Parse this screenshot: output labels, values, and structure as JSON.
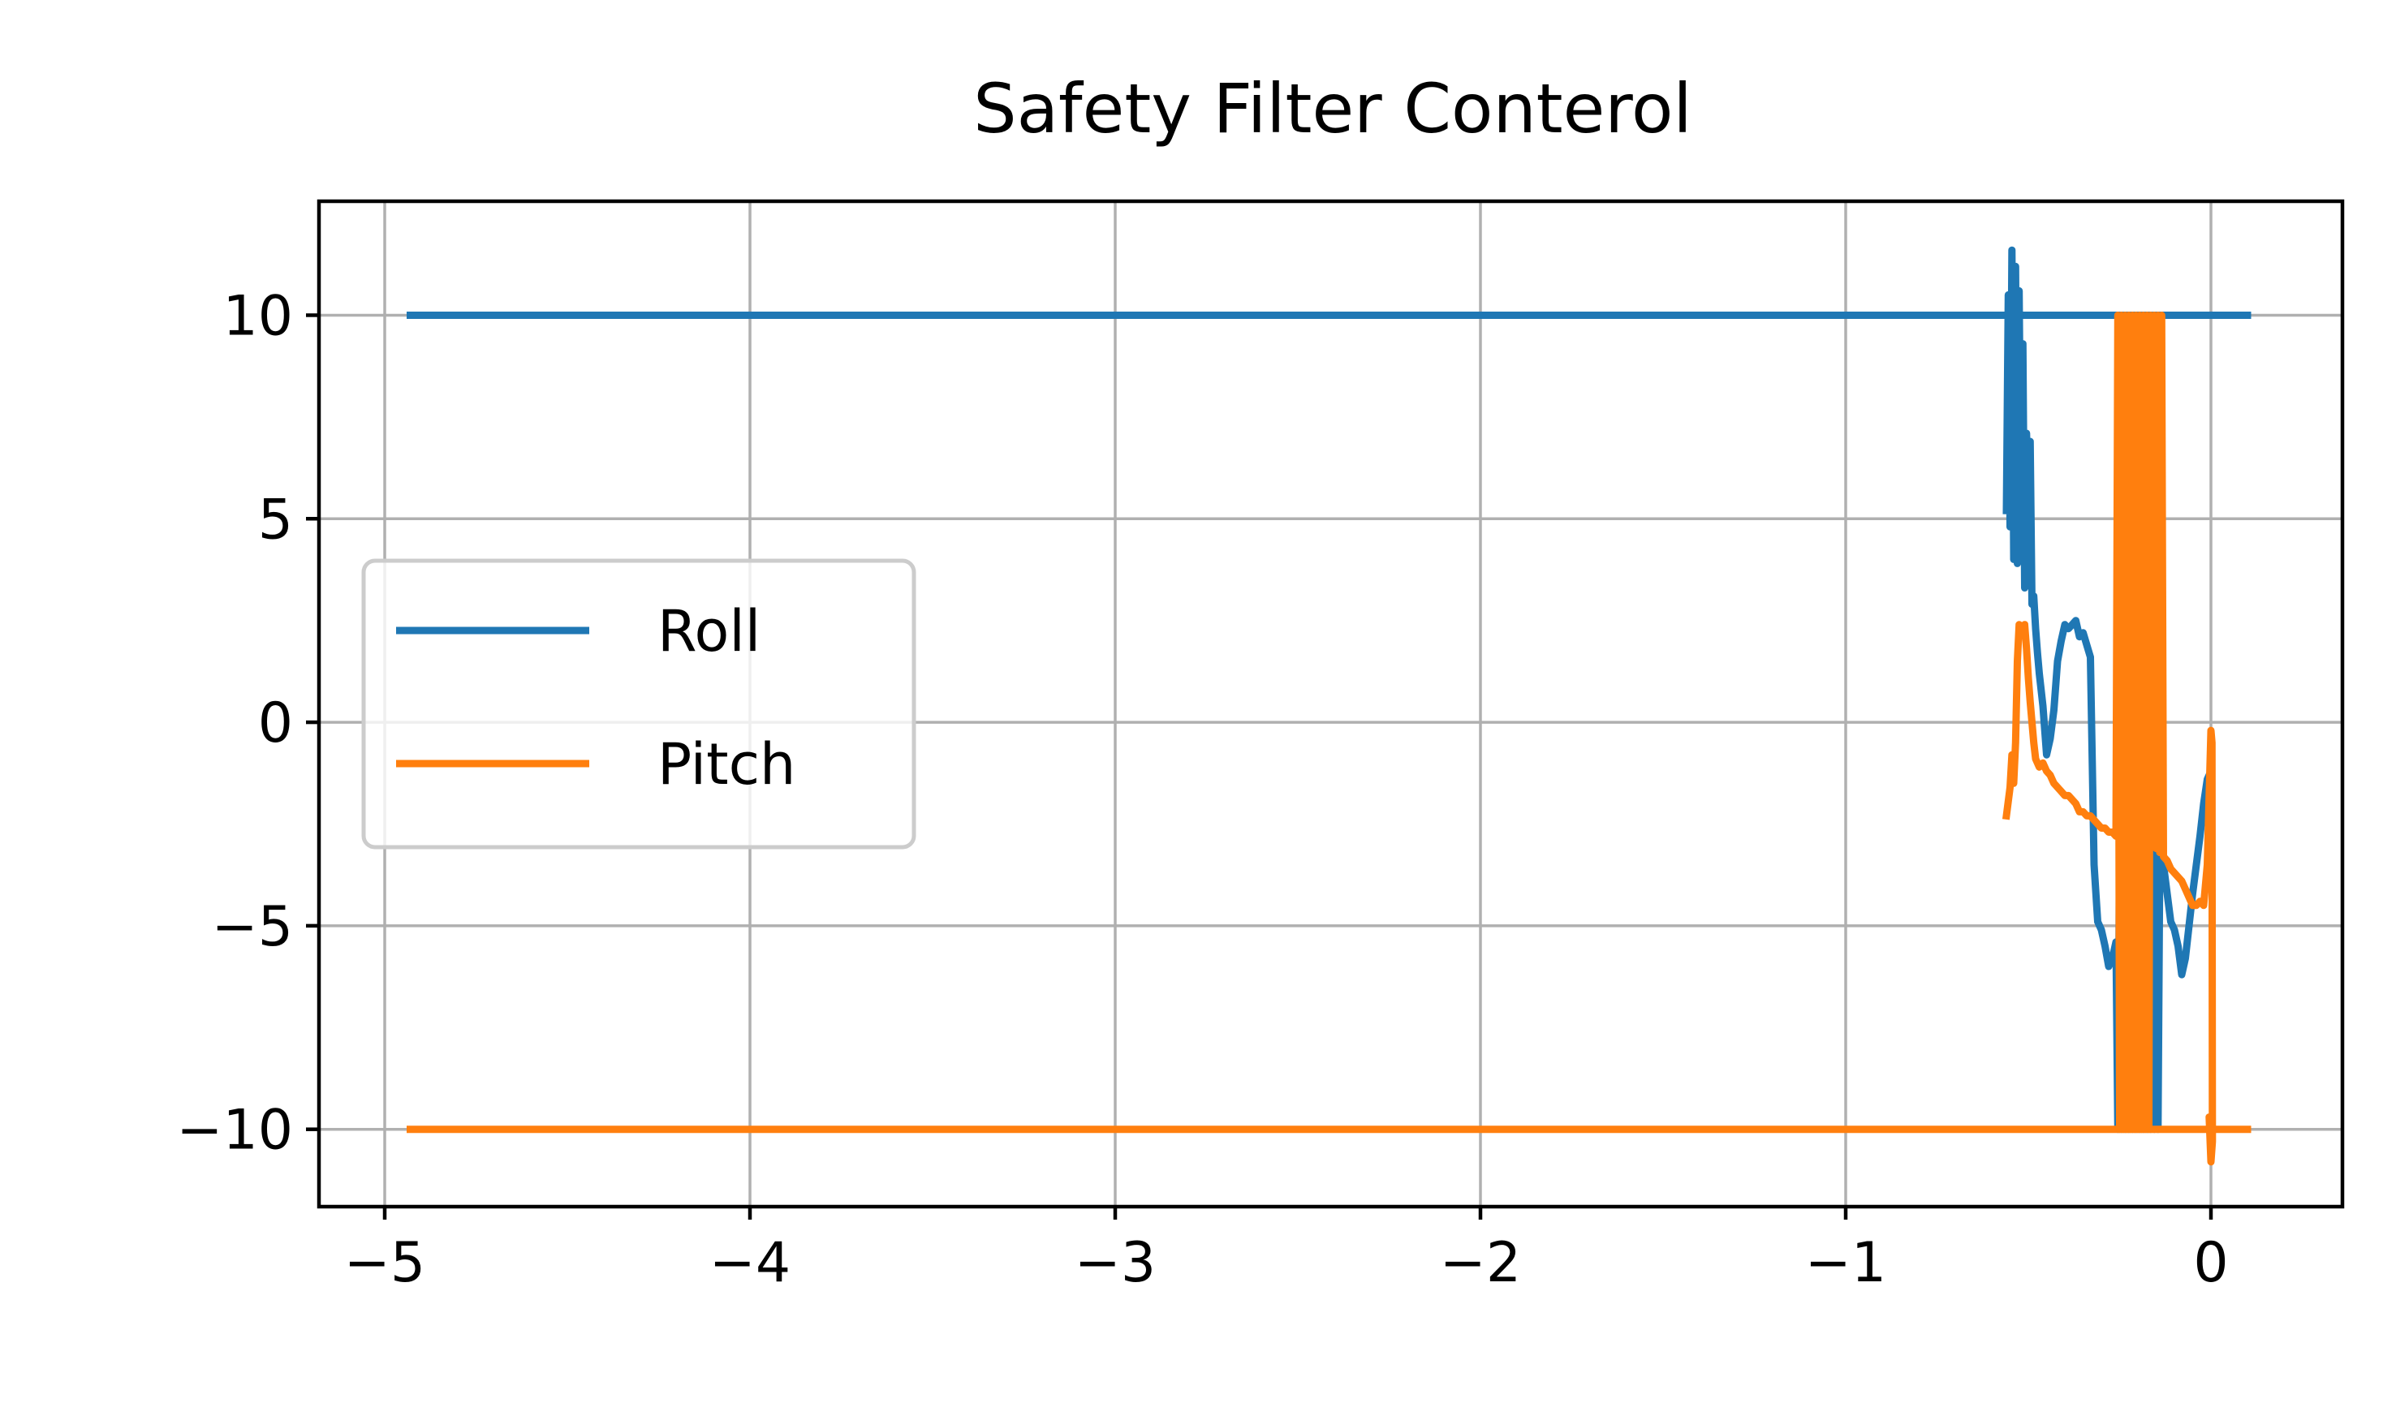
{
  "chart_data": {
    "type": "line",
    "title": "Safety Filter Conterol",
    "xlabel": "",
    "ylabel": "",
    "xlim": [
      -5.18,
      0.36
    ],
    "ylim": [
      -11.9,
      12.8
    ],
    "xticks": [
      -5,
      -4,
      -3,
      -2,
      -1,
      0
    ],
    "yticks": [
      -10,
      -5,
      0,
      5,
      10
    ],
    "xtick_labels": [
      "−5",
      "−4",
      "−3",
      "−2",
      "−1",
      "0"
    ],
    "ytick_labels": [
      "−10",
      "−5",
      "0",
      "5",
      "10"
    ],
    "grid": true,
    "legend": {
      "placement": "center-left",
      "entries": [
        "Roll",
        "Pitch"
      ]
    },
    "series": [
      {
        "name": "Roll",
        "color": "#1f77b4",
        "segments": [
          {
            "x": [
              -4.93,
              0.1
            ],
            "y": [
              10,
              10
            ]
          },
          {
            "x": [
              -0.56,
              -0.555,
              -0.55,
              -0.545,
              -0.54,
              -0.535,
              -0.53,
              -0.525,
              -0.52,
              -0.515,
              -0.51,
              -0.505,
              -0.5,
              -0.495,
              -0.49,
              -0.485,
              -0.48,
              -0.475,
              -0.47,
              -0.46,
              -0.45,
              -0.44,
              -0.43,
              -0.42,
              -0.41,
              -0.4,
              -0.39,
              -0.38,
              -0.37,
              -0.36,
              -0.35,
              -0.34,
              -0.33,
              -0.32,
              -0.31,
              -0.3,
              -0.29,
              -0.28,
              -0.27,
              -0.26,
              -0.255,
              -0.25,
              -0.245,
              -0.24,
              -0.235,
              -0.23,
              -0.225,
              -0.22,
              -0.215,
              -0.21,
              -0.205,
              -0.2,
              -0.195,
              -0.19,
              -0.185,
              -0.18,
              -0.175,
              -0.17,
              -0.165,
              -0.16,
              -0.155,
              -0.15,
              -0.145,
              -0.14,
              -0.135,
              -0.13,
              -0.12,
              -0.11,
              -0.1,
              -0.09,
              -0.08,
              -0.07,
              -0.06,
              -0.05,
              -0.04,
              -0.03,
              -0.02,
              -0.01,
              0.0,
              -0.005,
              0.0
            ],
            "y": [
              5.2,
              10.5,
              4.8,
              11.6,
              4.0,
              11.2,
              3.9,
              10.6,
              5.0,
              9.3,
              3.3,
              7.1,
              5.5,
              6.9,
              2.9,
              3.1,
              2.3,
              1.7,
              1.2,
              0.4,
              -0.8,
              -0.4,
              0.3,
              1.5,
              2.0,
              2.4,
              2.3,
              2.4,
              2.5,
              2.1,
              2.2,
              1.9,
              1.6,
              -3.5,
              -4.9,
              -5.1,
              -5.5,
              -6.0,
              -5.8,
              -5.4,
              -10.0,
              -2.7,
              -10.0,
              -5.5,
              -10.0,
              -5.0,
              -10.0,
              -2.0,
              -10.0,
              -1.0,
              -10.0,
              -5.5,
              -10.0,
              -1.5,
              -10.0,
              -3.0,
              -10.0,
              -1.1,
              -10.0,
              -2.8,
              -10.0,
              -1.4,
              -10.0,
              -3.2,
              -3.6,
              -3.5,
              -4.2,
              -4.9,
              -5.1,
              -5.5,
              -6.2,
              -5.8,
              -5.0,
              -4.2,
              -3.5,
              -2.8,
              -2.0,
              -1.4,
              -1.2,
              -2.0,
              -1.3
            ]
          }
        ]
      },
      {
        "name": "Pitch",
        "color": "#ff7f0e",
        "segments": [
          {
            "x": [
              -4.93,
              0.1
            ],
            "y": [
              -10,
              -10
            ]
          },
          {
            "x": [
              -0.56,
              -0.55,
              -0.545,
              -0.54,
              -0.535,
              -0.53,
              -0.525,
              -0.52,
              -0.515,
              -0.51,
              -0.505,
              -0.5,
              -0.495,
              -0.49,
              -0.485,
              -0.48,
              -0.47,
              -0.46,
              -0.45,
              -0.44,
              -0.43,
              -0.42,
              -0.41,
              -0.4,
              -0.39,
              -0.38,
              -0.37,
              -0.36,
              -0.35,
              -0.34,
              -0.33,
              -0.32,
              -0.31,
              -0.3,
              -0.29,
              -0.28,
              -0.27,
              -0.26,
              -0.255,
              -0.25,
              -0.245,
              -0.24,
              -0.235,
              -0.23,
              -0.225,
              -0.22,
              -0.215,
              -0.21,
              -0.205,
              -0.2,
              -0.195,
              -0.19,
              -0.185,
              -0.18,
              -0.175,
              -0.17,
              -0.165,
              -0.16,
              -0.155,
              -0.15,
              -0.145,
              -0.14,
              -0.135,
              -0.13,
              -0.12,
              -0.11,
              -0.1,
              -0.09,
              -0.08,
              -0.07,
              -0.06,
              -0.05,
              -0.04,
              -0.03,
              -0.02,
              -0.01,
              0.0,
              0.003,
              0.004,
              0.0,
              -0.005,
              0.0
            ],
            "y": [
              -2.3,
              -1.6,
              -0.8,
              -1.5,
              -0.5,
              1.5,
              2.4,
              2.3,
              2.2,
              2.4,
              1.8,
              1.1,
              0.5,
              0.0,
              -0.5,
              -0.9,
              -1.1,
              -1.0,
              -1.2,
              -1.3,
              -1.5,
              -1.6,
              -1.7,
              -1.8,
              -1.8,
              -1.9,
              -2.0,
              -2.2,
              -2.2,
              -2.3,
              -2.3,
              -2.4,
              -2.5,
              -2.6,
              -2.6,
              -2.7,
              -2.7,
              -2.8,
              10.0,
              -10.0,
              10.0,
              -10.0,
              10.0,
              -10.0,
              10.0,
              -10.0,
              10.0,
              -10.0,
              10.0,
              -10.0,
              10.0,
              -10.0,
              10.0,
              -10.0,
              10.0,
              -10.0,
              10.0,
              -3.0,
              10.0,
              -3.1,
              10.0,
              -3.2,
              10.0,
              -3.3,
              -3.4,
              -3.6,
              -3.7,
              -3.8,
              -3.9,
              -4.1,
              -4.3,
              -4.5,
              -4.5,
              -4.4,
              -4.5,
              -3.5,
              -0.2,
              -0.5,
              -10.3,
              -10.8,
              -9.7,
              -10.0
            ]
          }
        ]
      }
    ]
  }
}
